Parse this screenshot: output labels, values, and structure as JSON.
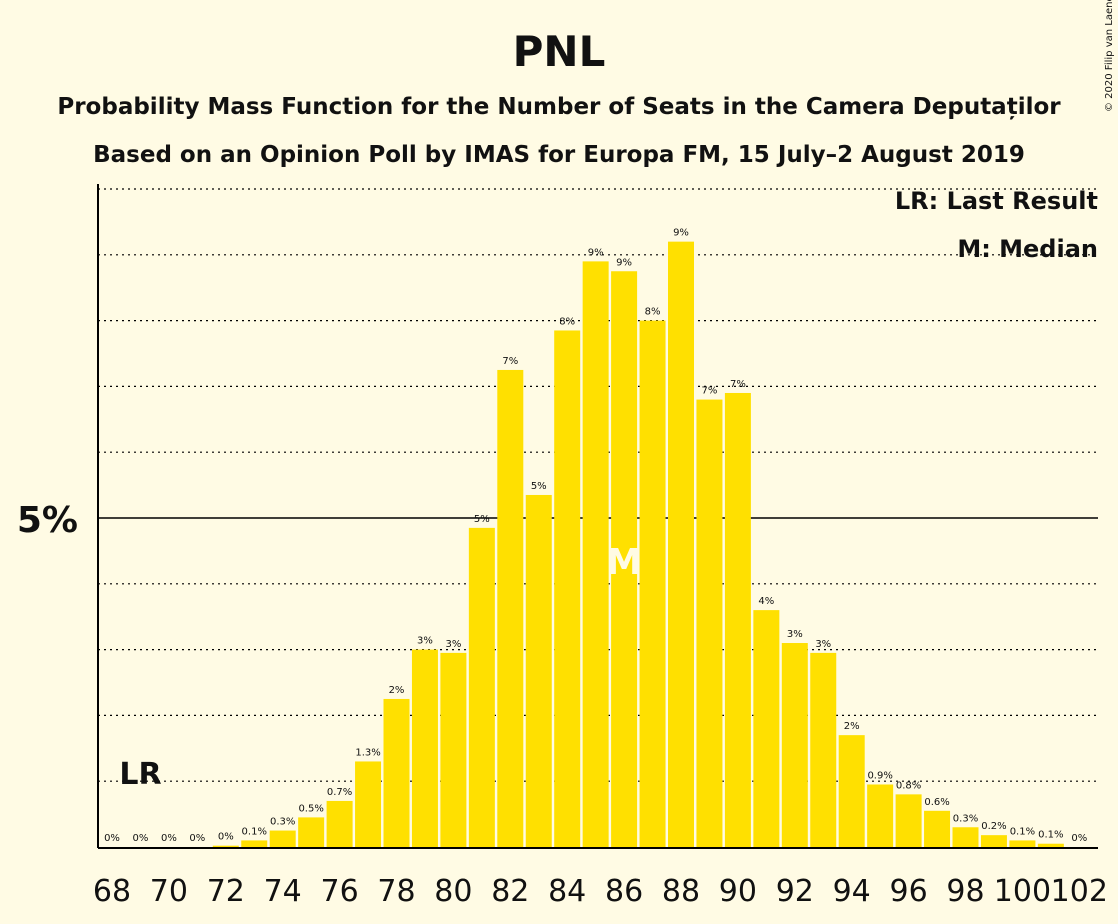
{
  "header": {
    "title": "PNL",
    "subtitle1": "Probability Mass Function for the Number of Seats in the Camera Deputaților",
    "subtitle2": "Based on an Opinion Poll by IMAS for Europa FM, 15 July–2 August 2019",
    "copyright": "© 2020 Filip van Laenen"
  },
  "legend": {
    "lr": "LR: Last Result",
    "m": "M: Median"
  },
  "colors": {
    "bar": "#FFE000",
    "background": "#FFFBE4",
    "text": "#111111"
  },
  "chart_data": {
    "type": "bar",
    "categories": [
      68,
      69,
      70,
      71,
      72,
      73,
      74,
      75,
      76,
      77,
      78,
      79,
      80,
      81,
      82,
      83,
      84,
      85,
      86,
      87,
      88,
      89,
      90,
      91,
      92,
      93,
      94,
      95,
      96,
      97,
      98,
      99,
      100,
      101,
      102
    ],
    "values": [
      0,
      0,
      0,
      0,
      0.02,
      0.1,
      0.25,
      0.45,
      0.7,
      1.3,
      2.25,
      3.0,
      2.95,
      4.85,
      7.25,
      5.35,
      7.85,
      8.9,
      8.75,
      8.0,
      9.2,
      6.8,
      6.9,
      3.6,
      3.1,
      2.95,
      1.7,
      0.95,
      0.8,
      0.55,
      0.3,
      0.18,
      0.1,
      0.05,
      0
    ],
    "data_labels": [
      "0%",
      "0%",
      "0%",
      "0%",
      "0%",
      "0.1%",
      "0.3%",
      "0.5%",
      "0.7%",
      "1.3%",
      "2%",
      "3%",
      "3%",
      "5%",
      "7%",
      "5%",
      "8%",
      "9%",
      "9%",
      "8%",
      "9%",
      "7%",
      "7%",
      "4%",
      "3%",
      "3%",
      "2%",
      "0.9%",
      "0.8%",
      "0.6%",
      "0.3%",
      "0.2%",
      "0.1%",
      "0.1%",
      "0%"
    ],
    "x_tick_labels": [
      "68",
      "70",
      "72",
      "74",
      "76",
      "78",
      "80",
      "82",
      "84",
      "86",
      "88",
      "90",
      "92",
      "94",
      "96",
      "98",
      "100",
      "102"
    ],
    "y_tick_label": "5%",
    "y_tick_value": 5,
    "ylim": [
      0,
      10
    ],
    "last_result": {
      "category": 69,
      "label": "LR"
    },
    "median": {
      "category": 86,
      "label": "M"
    },
    "grid": true,
    "legend_position": "top-right"
  }
}
